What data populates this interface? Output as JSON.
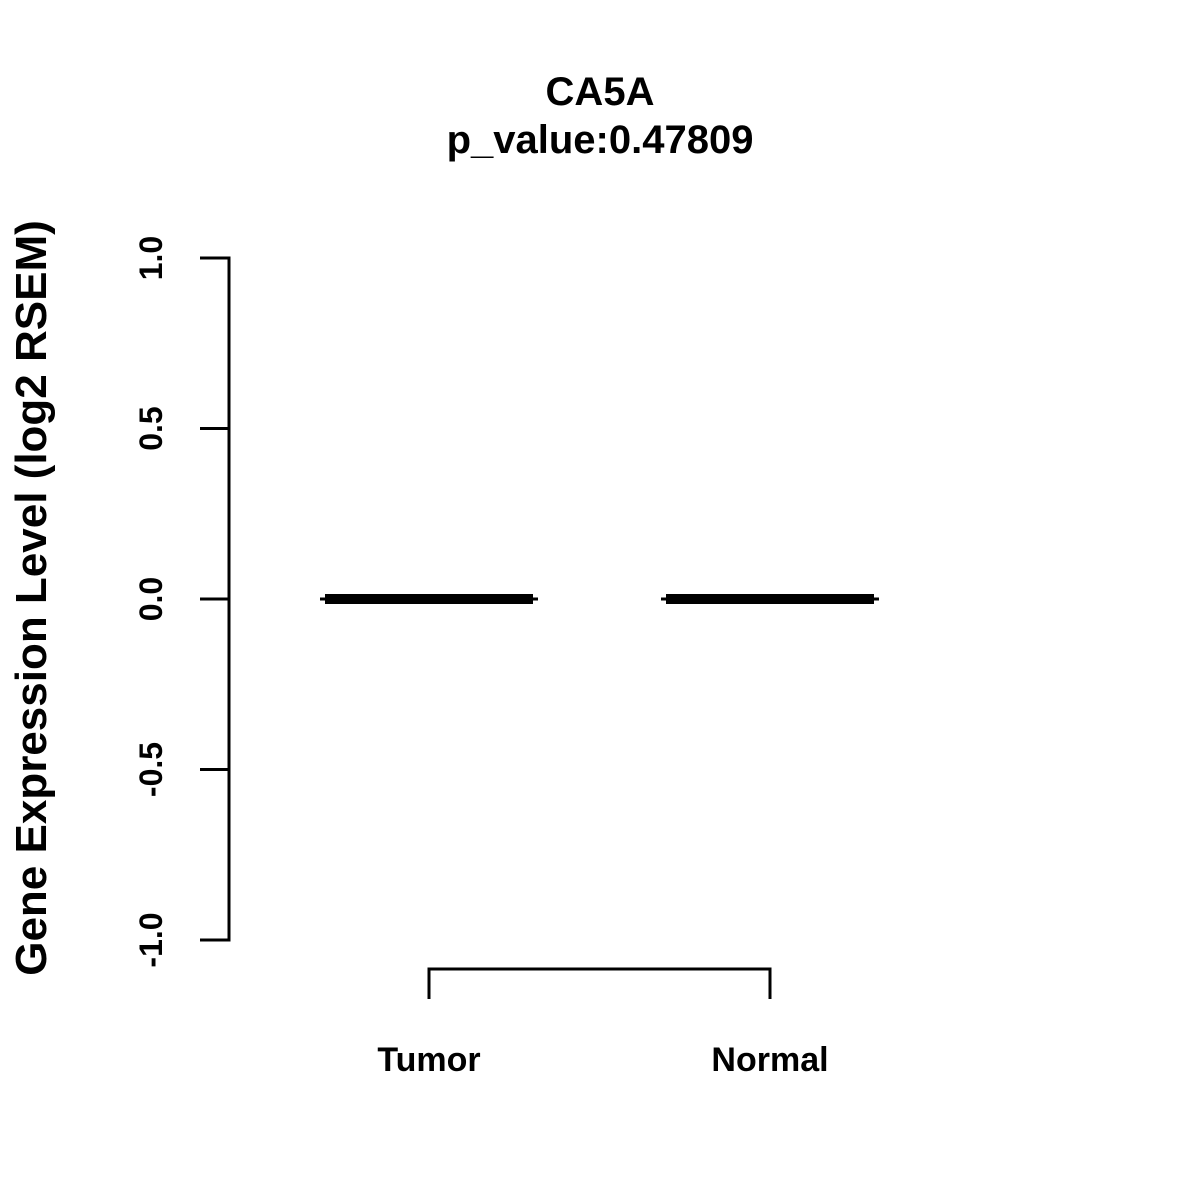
{
  "page": {
    "background_color": "#ffffff",
    "foreground_color": "#000000"
  },
  "chart_data": {
    "type": "boxplot",
    "title": "CA5A",
    "subtitle": "p_value:0.47809",
    "ylabel": "Gene Expression Level (log2 RSEM)",
    "xlabel": "",
    "categories": [
      "Tumor",
      "Normal"
    ],
    "series": [
      {
        "name": "Tumor",
        "median": 0.0,
        "q1": 0.0,
        "q3": 0.0,
        "whisker_low": 0.0,
        "whisker_high": 0.0
      },
      {
        "name": "Normal",
        "median": 0.0,
        "q1": 0.0,
        "q3": 0.0,
        "whisker_low": 0.0,
        "whisker_high": 0.0
      }
    ],
    "ylim": [
      -1.0,
      1.0
    ],
    "yticks": [
      1.0,
      0.5,
      0.0,
      -0.5,
      -1.0
    ],
    "ytick_labels": [
      "1.0",
      "0.5",
      "0.0",
      "-0.5",
      "-1.0"
    ],
    "grid": false,
    "annotations": [
      {
        "type": "comparison-bracket",
        "from": "Tumor",
        "to": "Normal",
        "position": "below-axis"
      }
    ]
  }
}
